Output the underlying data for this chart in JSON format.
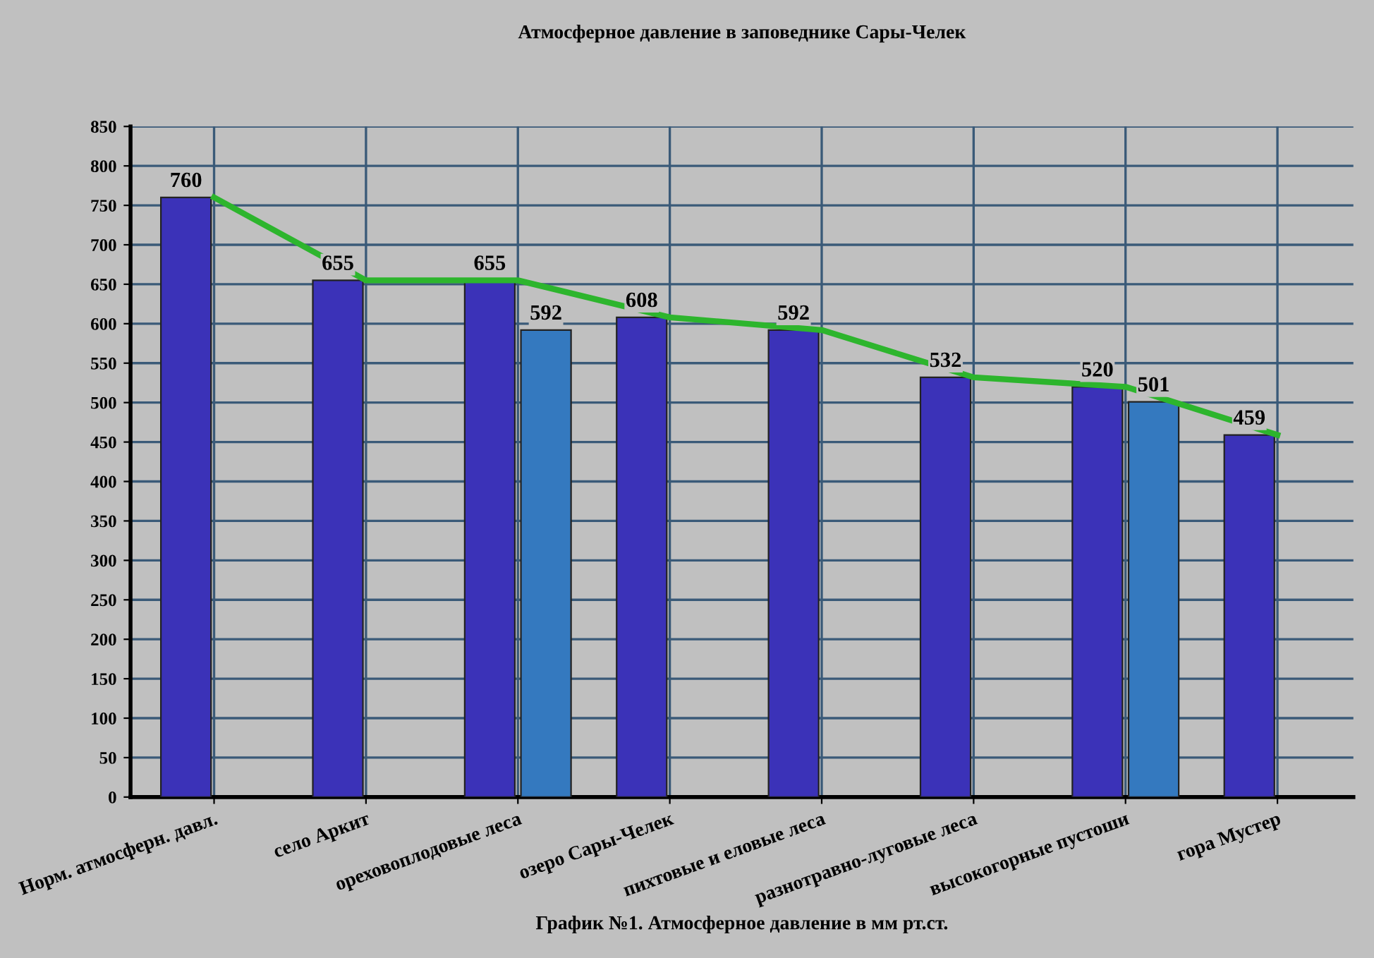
{
  "chart_data": {
    "type": "bar",
    "title": "Атмосферное давление в заповеднике Сары-Челек",
    "xlabel": "График №1. Атмосферное давление в мм рт.ст.",
    "categories": [
      "Норм. атмосферн. давл.",
      "село Аркит",
      "ореховоплодовые леса",
      "озеро Сары-Челек",
      "пихтовые и еловые леса",
      "разнотравно-луговые леса",
      "высокогорные пустоши",
      "гора Мустер"
    ],
    "series": [
      {
        "color": "#3b32b8",
        "values": [
          760,
          655,
          655,
          608,
          592,
          532,
          520,
          459
        ],
        "value_labels": [
          "760",
          "655",
          "655",
          "608",
          "592",
          "532",
          "520",
          "459"
        ]
      },
      {
        "color": "#3479bf",
        "values": [
          null,
          null,
          592,
          null,
          null,
          null,
          501,
          null
        ],
        "value_labels": [
          null,
          null,
          "592",
          null,
          null,
          null,
          "501",
          null
        ]
      },
      {
        "type": "line",
        "color": "#2db52d",
        "values": [
          760,
          655,
          655,
          608,
          592,
          532,
          520,
          459
        ]
      }
    ],
    "ylim": [
      0,
      850
    ],
    "yticks": [
      0,
      50,
      100,
      150,
      200,
      250,
      300,
      350,
      400,
      450,
      500,
      550,
      600,
      650,
      700,
      750,
      800,
      850
    ],
    "grid": true
  }
}
